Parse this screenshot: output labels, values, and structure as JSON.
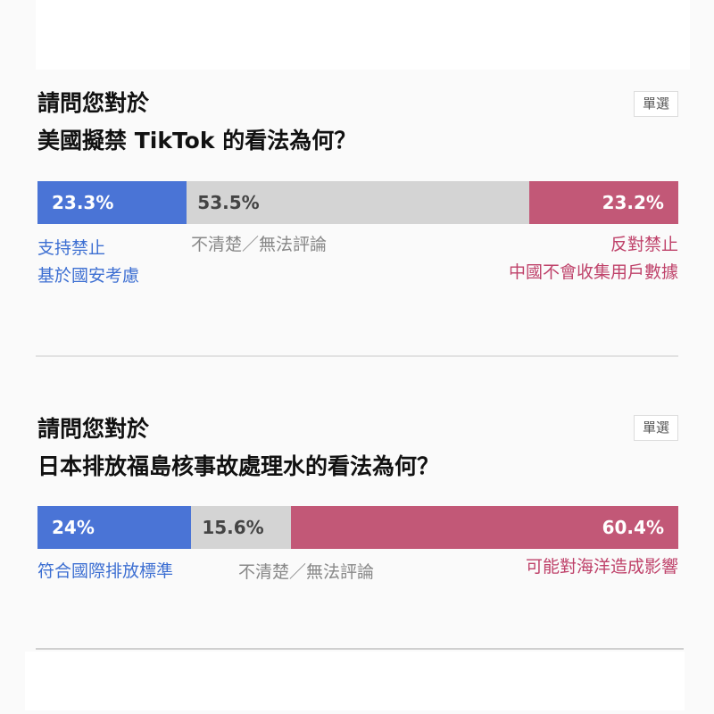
{
  "colors": {
    "agree": "#4a74d6",
    "neutral": "#d4d4d4",
    "disagree": "#c25877"
  },
  "polls": [
    {
      "title_line1": "請問您對於",
      "title_line2": "美國擬禁 TikTok 的看法為何？",
      "badge": "單選",
      "options": [
        {
          "value": 23.3,
          "display": "23.3%",
          "label_lines": [
            "支持禁止",
            "基於國安考慮"
          ]
        },
        {
          "value": 53.5,
          "display": "53.5%",
          "label_lines": [
            "不清楚／無法評論"
          ]
        },
        {
          "value": 23.2,
          "display": "23.2%",
          "label_lines": [
            "反對禁止",
            "中國不會收集用戶數據"
          ]
        }
      ]
    },
    {
      "title_line1": "請問您對於",
      "title_line2": "日本排放福島核事故處理水的看法為何？",
      "badge": "單選",
      "options": [
        {
          "value": 24,
          "display": "24%",
          "label_lines": [
            "符合國際排放標準"
          ]
        },
        {
          "value": 15.6,
          "display": "15.6%",
          "label_lines": [
            "不清楚／無法評論"
          ]
        },
        {
          "value": 60.4,
          "display": "60.4%",
          "label_lines": [
            "可能對海洋造成影響"
          ]
        }
      ]
    }
  ]
}
